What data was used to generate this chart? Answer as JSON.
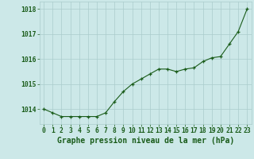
{
  "x": [
    0,
    1,
    2,
    3,
    4,
    5,
    6,
    7,
    8,
    9,
    10,
    11,
    12,
    13,
    14,
    15,
    16,
    17,
    18,
    19,
    20,
    21,
    22,
    23
  ],
  "y": [
    1014.0,
    1013.85,
    1013.7,
    1013.7,
    1013.7,
    1013.7,
    1013.7,
    1013.85,
    1014.3,
    1014.7,
    1015.0,
    1015.2,
    1015.4,
    1015.6,
    1015.6,
    1015.5,
    1015.6,
    1015.65,
    1015.9,
    1016.05,
    1016.1,
    1016.6,
    1017.1,
    1018.0
  ],
  "line_color": "#1a5c1a",
  "marker": "+",
  "marker_color": "#1a5c1a",
  "bg_color": "#cce8e8",
  "grid_color": "#aacccc",
  "xlabel": "Graphe pression niveau de la mer (hPa)",
  "xlabel_color": "#1a5c1a",
  "tick_color": "#1a5c1a",
  "ylim": [
    1013.4,
    1018.3
  ],
  "yticks": [
    1014,
    1015,
    1016,
    1017,
    1018
  ],
  "xticks": [
    0,
    1,
    2,
    3,
    4,
    5,
    6,
    7,
    8,
    9,
    10,
    11,
    12,
    13,
    14,
    15,
    16,
    17,
    18,
    19,
    20,
    21,
    22,
    23
  ],
  "tick_fontsize": 5.8,
  "xlabel_fontsize": 7.0
}
